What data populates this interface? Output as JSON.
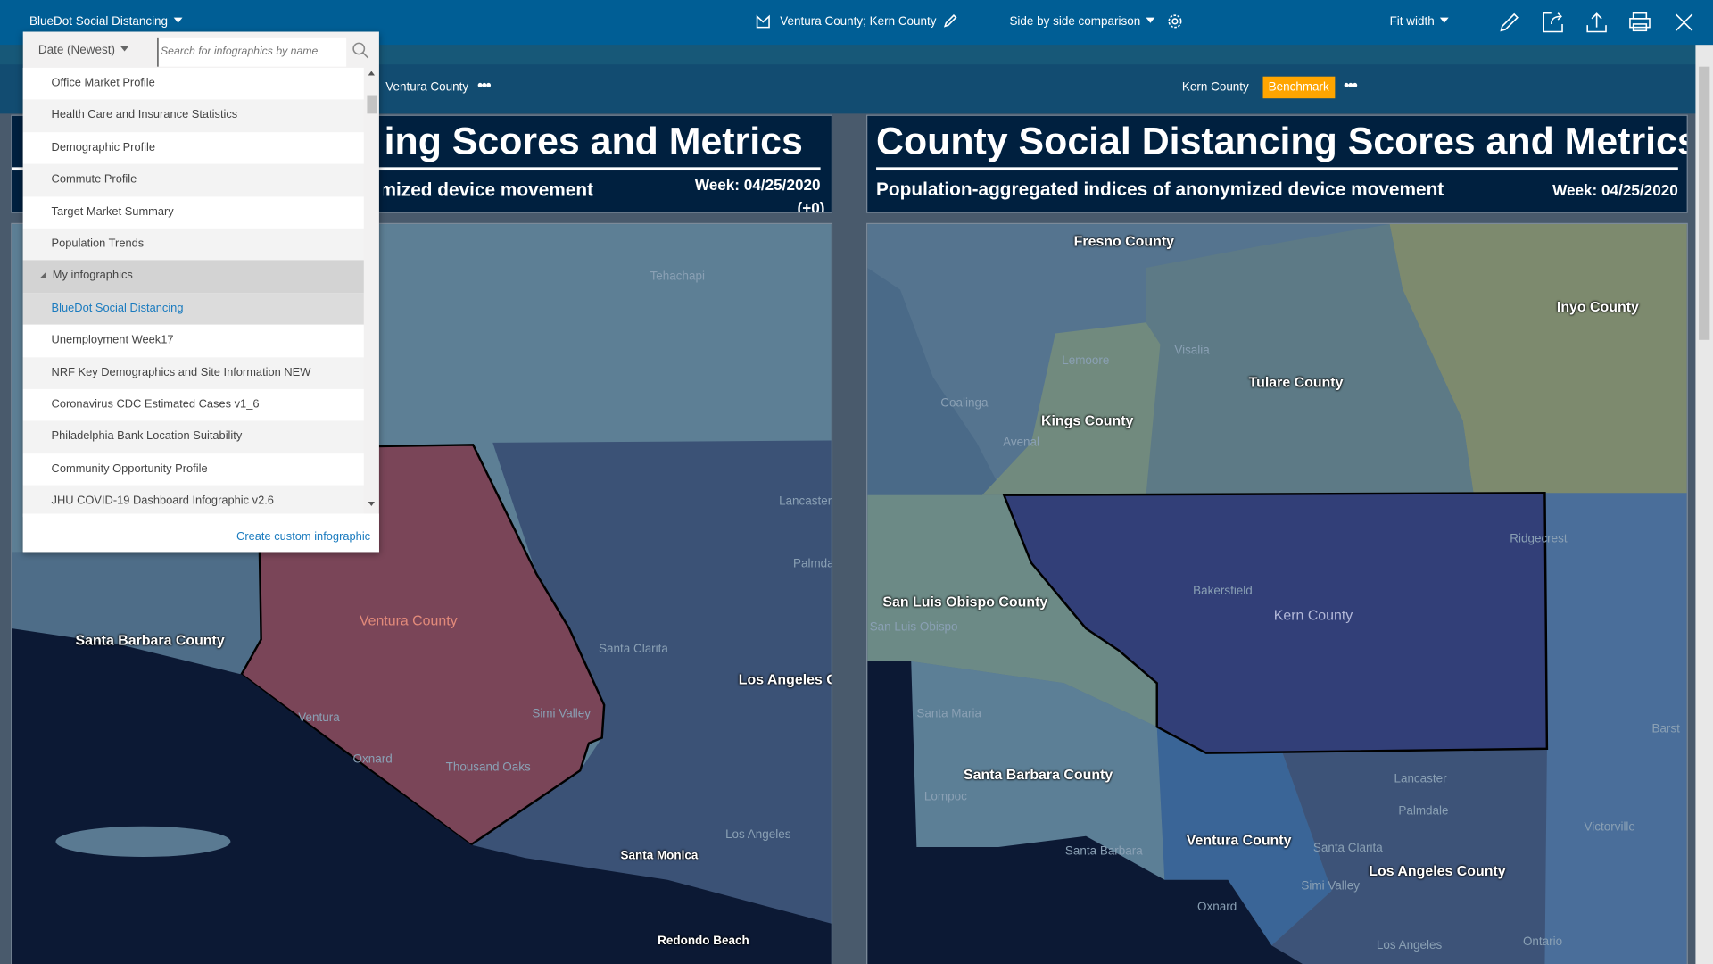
{
  "topbar": {
    "infographic_selector": "BlueDot Social Distancing",
    "areas": "Ventura County; Kern County",
    "comparison_mode": "Side by side comparison",
    "zoom_mode": "Fit width"
  },
  "dropdown": {
    "sort": "Date (Newest)",
    "search_placeholder": "Search for infographics by name",
    "items": [
      {
        "label": "Office Market Profile",
        "type": "item"
      },
      {
        "label": "Health Care and Insurance Statistics",
        "type": "item"
      },
      {
        "label": "Demographic Profile",
        "type": "item"
      },
      {
        "label": "Commute Profile",
        "type": "item"
      },
      {
        "label": "Target Market Summary",
        "type": "item"
      },
      {
        "label": "Population Trends",
        "type": "item"
      },
      {
        "label": "My infographics",
        "type": "group"
      },
      {
        "label": "BlueDot Social Distancing",
        "type": "selected"
      },
      {
        "label": "Unemployment Week17",
        "type": "item"
      },
      {
        "label": "NRF Key Demographics and Site Information NEW",
        "type": "item"
      },
      {
        "label": "Coronavirus CDC Estimated Cases v1_6",
        "type": "item"
      },
      {
        "label": "Philadelphia Bank Location Suitability",
        "type": "item"
      },
      {
        "label": "Community Opportunity Profile",
        "type": "item"
      },
      {
        "label": "JHU COVID-19 Dashboard Infographic v2.6",
        "type": "item"
      }
    ],
    "create_link": "Create custom infographic"
  },
  "left_panel": {
    "area": "Ventura County",
    "title": "County Social Distancing Scores and Metrics",
    "subtitle": "Population-aggregated indices of anonymized device movement",
    "week": "Week: 04/25/2020",
    "delta": "(+0)",
    "map_labels": {
      "tehachapi": "Tehachapi",
      "lancaster": "Lancaster",
      "palmdale": "Palmdale",
      "santa_barbara_county": "Santa Barbara County",
      "ventura_county": "Ventura County",
      "santa_clarita": "Santa Clarita",
      "los_angeles_county": "Los Angeles C",
      "simi_valley": "Simi Valley",
      "ventura": "Ventura",
      "oxnard": "Oxnard",
      "thousand_oaks": "Thousand Oaks",
      "los_angeles": "Los Angeles",
      "santa_monica": "Santa Monica",
      "redondo_beach": "Redondo Beach"
    }
  },
  "right_panel": {
    "area": "Kern County",
    "badge": "Benchmark",
    "title": "County Social Distancing Scores and Metrics",
    "subtitle": "Population-aggregated indices of anonymized device movement",
    "week": "Week: 04/25/2020",
    "map_labels": {
      "fresno_county": "Fresno County",
      "inyo_county": "Inyo County",
      "lemoore": "Lemoore",
      "visalia": "Visalia",
      "tulare_county": "Tulare County",
      "coalinga": "Coalinga",
      "kings_county": "Kings County",
      "avenal": "Avenal",
      "ridgecrest": "Ridgecrest",
      "slo_county": "San Luis Obispo County",
      "slo": "San Luis Obispo",
      "bakersfield": "Bakersfield",
      "kern_county": "Kern County",
      "santa_maria": "Santa Maria",
      "barstow": "Barst",
      "santa_barbara_county": "Santa Barbara County",
      "lompoc": "Lompoc",
      "lancaster": "Lancaster",
      "palmdale": "Palmdale",
      "ventura_county": "Ventura County",
      "victorville": "Victorville",
      "santa_barbara": "Santa Barbara",
      "santa_clarita": "Santa Clarita",
      "los_angeles_county": "Los Angeles County",
      "simi_valley": "Simi Valley",
      "oxnard": "Oxnard",
      "los_angeles": "Los Angeles",
      "ontario": "Ontario"
    }
  },
  "colors": {
    "topbar": "#005e95",
    "benchmark": "#ffa500",
    "link": "#1a7bbf",
    "header": "#00203f"
  }
}
